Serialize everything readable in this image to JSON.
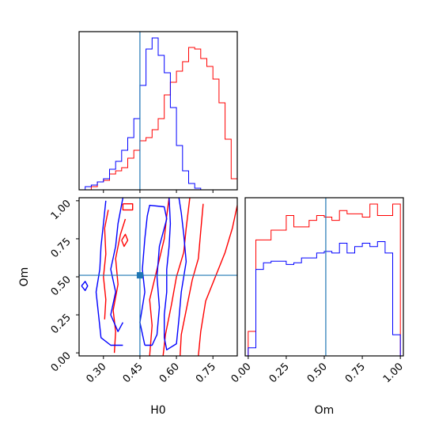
{
  "chart_data": {
    "type": "corner",
    "parameters": [
      "H0",
      "Om"
    ],
    "truth": {
      "H0": 0.45,
      "Om": 0.51
    },
    "colors": {
      "red_series": "#ff0000",
      "blue_series": "#0000ff",
      "truth_line": "#1f77b4",
      "frame": "#000000"
    },
    "labels": {
      "x_h0": "H0",
      "x_om": "Om",
      "y_om": "Om"
    },
    "ticks": {
      "h0": [
        "0.30",
        "0.45",
        "0.60",
        "0.75"
      ],
      "om": [
        "0.00",
        "0.25",
        "0.50",
        "0.75",
        "1.00"
      ]
    },
    "ranges": {
      "H0": [
        0.2,
        0.85
      ],
      "Om": [
        -0.02,
        1.02
      ]
    },
    "grid": false,
    "hist_h0": {
      "bin_edges": [
        0.2,
        0.225,
        0.25,
        0.275,
        0.3,
        0.325,
        0.35,
        0.375,
        0.4,
        0.425,
        0.45,
        0.475,
        0.5,
        0.525,
        0.55,
        0.575,
        0.6,
        0.625,
        0.65,
        0.675,
        0.7,
        0.725,
        0.75,
        0.775,
        0.8,
        0.825,
        0.85
      ],
      "series": [
        {
          "color_key": "red_series",
          "values": [
            0,
            0,
            2,
            5,
            6,
            10,
            12,
            14,
            20,
            25,
            31,
            33,
            38,
            45,
            60,
            68,
            75,
            81,
            90,
            89,
            83,
            78,
            70,
            55,
            32,
            7
          ]
        },
        {
          "color_key": "blue_series",
          "values": [
            0,
            2,
            3,
            5,
            7,
            13,
            18,
            25,
            33,
            45,
            66,
            89,
            96,
            85,
            74,
            52,
            28,
            12,
            4,
            1,
            0,
            0,
            0,
            0,
            0,
            0
          ]
        }
      ]
    },
    "hist_om": {
      "bin_edges": [
        0.0,
        0.05,
        0.1,
        0.15,
        0.2,
        0.25,
        0.3,
        0.35,
        0.4,
        0.45,
        0.5,
        0.55,
        0.6,
        0.65,
        0.7,
        0.75,
        0.8,
        0.85,
        0.9,
        0.95,
        1.0
      ],
      "series": [
        {
          "color_key": "red_series",
          "values": [
            15,
            71,
            71,
            77,
            77,
            86,
            79,
            79,
            83,
            86,
            85,
            83,
            89,
            87,
            87,
            85,
            93,
            86,
            86,
            93
          ]
        },
        {
          "color_key": "blue_series",
          "values": [
            5,
            53,
            57,
            58,
            58,
            56,
            57,
            60,
            60,
            63,
            64,
            63,
            69,
            63,
            67,
            69,
            67,
            70,
            63,
            13
          ]
        }
      ]
    },
    "contours": {
      "red_series": [
        [
          [
            0.305,
            0.22
          ],
          [
            0.31,
            0.35
          ],
          [
            0.3,
            0.5
          ],
          [
            0.31,
            0.65
          ],
          [
            0.305,
            0.82
          ],
          [
            0.32,
            0.94
          ]
        ],
        [
          [
            0.345,
            0.0
          ],
          [
            0.35,
            0.14
          ],
          [
            0.34,
            0.28
          ],
          [
            0.36,
            0.45
          ],
          [
            0.35,
            0.62
          ],
          [
            0.37,
            0.78
          ],
          [
            0.39,
            0.88
          ]
        ],
        [
          [
            0.49,
            -0.02
          ],
          [
            0.5,
            0.18
          ],
          [
            0.49,
            0.35
          ],
          [
            0.52,
            0.55
          ],
          [
            0.55,
            0.75
          ],
          [
            0.56,
            0.9
          ],
          [
            0.57,
            1.02
          ]
        ],
        [
          [
            0.545,
            -0.02
          ],
          [
            0.555,
            0.12
          ],
          [
            0.58,
            0.32
          ],
          [
            0.6,
            0.5
          ],
          [
            0.63,
            0.66
          ],
          [
            0.64,
            0.82
          ],
          [
            0.655,
            1.02
          ]
        ],
        [
          [
            0.615,
            -0.02
          ],
          [
            0.62,
            0.12
          ],
          [
            0.64,
            0.28
          ],
          [
            0.665,
            0.48
          ],
          [
            0.69,
            0.62
          ],
          [
            0.7,
            0.8
          ],
          [
            0.71,
            0.98
          ]
        ],
        [
          [
            0.69,
            -0.02
          ],
          [
            0.7,
            0.14
          ],
          [
            0.72,
            0.34
          ],
          [
            0.76,
            0.5
          ],
          [
            0.8,
            0.66
          ],
          [
            0.83,
            0.82
          ],
          [
            0.85,
            0.97
          ]
        ],
        [
          [
            0.38,
            0.98
          ],
          [
            0.42,
            0.98
          ],
          [
            0.42,
            0.94
          ],
          [
            0.38,
            0.94
          ],
          [
            0.38,
            0.98
          ]
        ],
        [
          [
            0.375,
            0.74
          ],
          [
            0.39,
            0.78
          ],
          [
            0.4,
            0.74
          ],
          [
            0.385,
            0.7
          ],
          [
            0.375,
            0.74
          ]
        ]
      ],
      "blue_series": [
        [
          [
            0.31,
            1.0
          ],
          [
            0.3,
            0.85
          ],
          [
            0.29,
            0.7
          ],
          [
            0.285,
            0.55
          ],
          [
            0.27,
            0.4
          ],
          [
            0.28,
            0.25
          ],
          [
            0.29,
            0.1
          ],
          [
            0.33,
            0.05
          ],
          [
            0.38,
            0.05
          ]
        ],
        [
          [
            0.38,
            1.02
          ],
          [
            0.36,
            0.85
          ],
          [
            0.35,
            0.7
          ],
          [
            0.33,
            0.55
          ],
          [
            0.35,
            0.4
          ],
          [
            0.33,
            0.25
          ],
          [
            0.36,
            0.14
          ],
          [
            0.38,
            0.2
          ]
        ],
        [
          [
            0.47,
            0.05
          ],
          [
            0.45,
            0.2
          ],
          [
            0.47,
            0.4
          ],
          [
            0.46,
            0.55
          ],
          [
            0.47,
            0.75
          ],
          [
            0.48,
            0.9
          ],
          [
            0.49,
            0.97
          ],
          [
            0.55,
            0.96
          ],
          [
            0.56,
            0.88
          ],
          [
            0.53,
            0.7
          ],
          [
            0.52,
            0.5
          ],
          [
            0.53,
            0.3
          ],
          [
            0.52,
            0.12
          ],
          [
            0.5,
            0.05
          ],
          [
            0.47,
            0.05
          ]
        ],
        [
          [
            0.57,
            1.02
          ],
          [
            0.575,
            0.85
          ],
          [
            0.57,
            0.7
          ],
          [
            0.56,
            0.55
          ],
          [
            0.56,
            0.4
          ],
          [
            0.55,
            0.25
          ],
          [
            0.55,
            0.1
          ],
          [
            0.56,
            0.02
          ],
          [
            0.6,
            0.06
          ],
          [
            0.61,
            0.22
          ],
          [
            0.62,
            0.4
          ],
          [
            0.64,
            0.6
          ],
          [
            0.63,
            0.78
          ],
          [
            0.62,
            0.92
          ],
          [
            0.61,
            1.02
          ]
        ],
        [
          [
            0.21,
            0.44
          ],
          [
            0.225,
            0.47
          ],
          [
            0.235,
            0.44
          ],
          [
            0.225,
            0.41
          ],
          [
            0.21,
            0.44
          ]
        ]
      ]
    }
  }
}
